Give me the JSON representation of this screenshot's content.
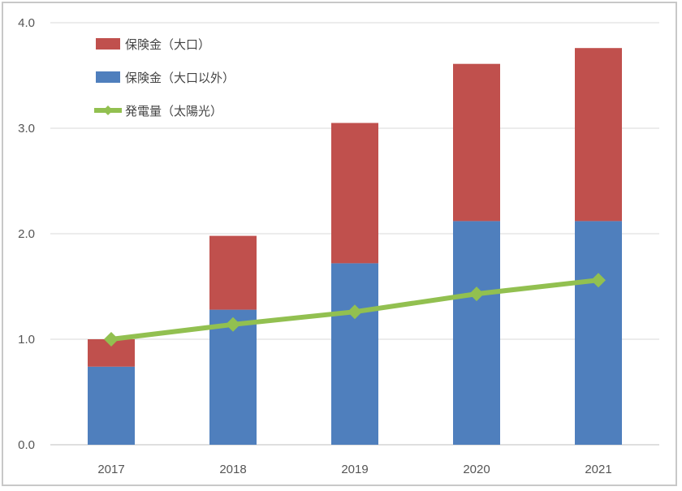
{
  "chart_data": {
    "type": "bar",
    "stacked": true,
    "categories": [
      "2017",
      "2018",
      "2019",
      "2020",
      "2021"
    ],
    "series": [
      {
        "name": "保険金（大口以外）",
        "kind": "bar",
        "color": "#4f7fbd",
        "values": [
          0.74,
          1.28,
          1.72,
          2.12,
          2.12
        ]
      },
      {
        "name": "保険金（大口）",
        "kind": "bar",
        "color": "#c0504d",
        "values": [
          0.26,
          0.7,
          1.33,
          1.49,
          1.64
        ]
      },
      {
        "name": "発電量（太陽光）",
        "kind": "line",
        "color": "#92c050",
        "values": [
          1.0,
          1.14,
          1.26,
          1.43,
          1.56
        ]
      }
    ],
    "legend": [
      {
        "label": "保険金（大口）",
        "color": "#c0504d",
        "marker": "box"
      },
      {
        "label": "保険金（大口以外）",
        "color": "#4f7fbd",
        "marker": "box"
      },
      {
        "label": "発電量（太陽光）",
        "color": "#92c050",
        "marker": "line"
      }
    ],
    "yticks": [
      "0.0",
      "1.0",
      "2.0",
      "3.0",
      "4.0"
    ],
    "ylim": [
      0,
      4
    ],
    "grid": true,
    "legend_position": "top-left"
  }
}
